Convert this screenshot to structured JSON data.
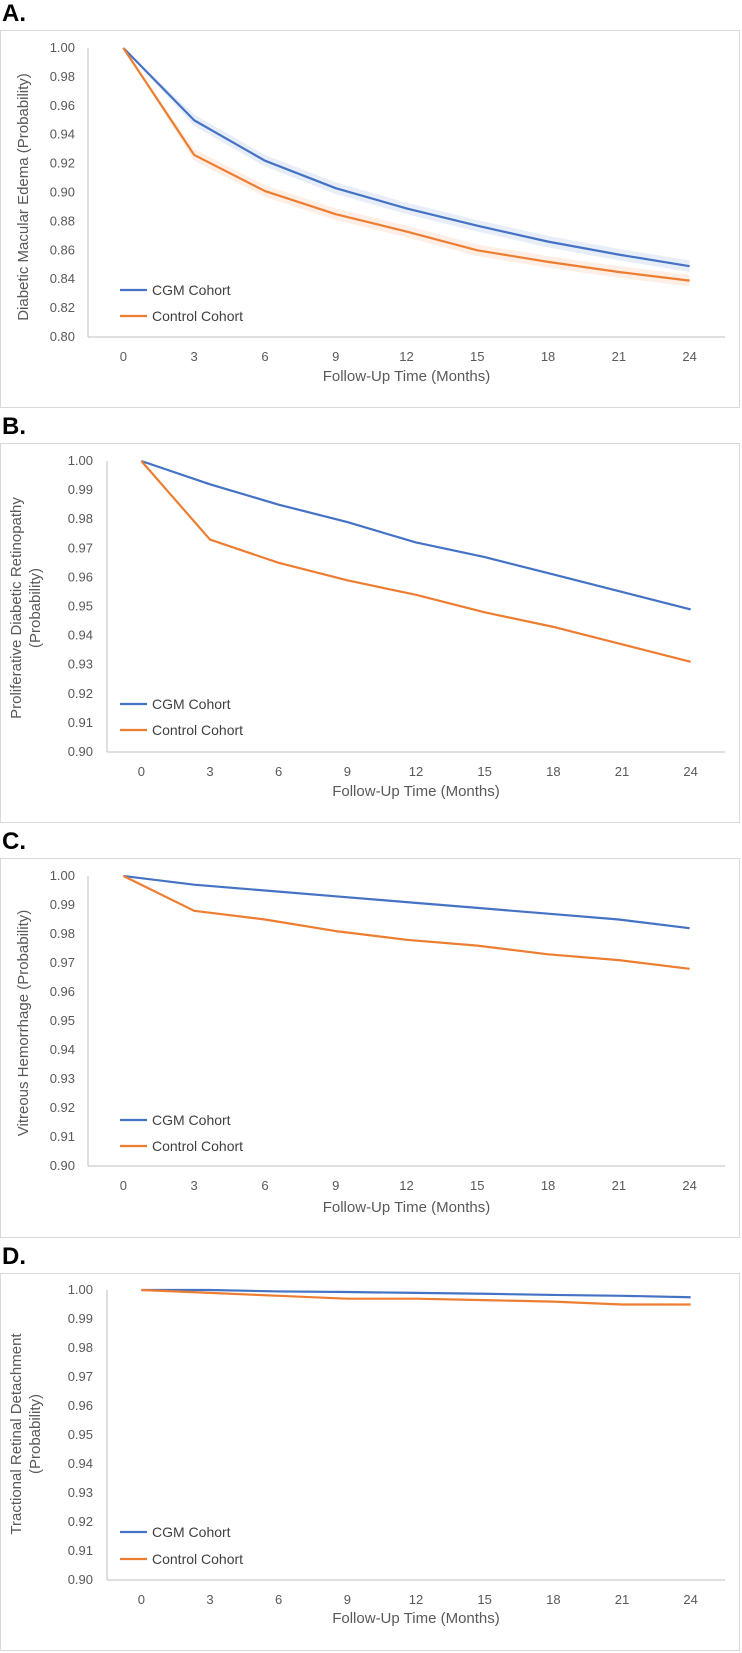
{
  "colors": {
    "cgm": "#4472c4",
    "control": "#ed7d31",
    "axis": "#bfbfbf",
    "text": "#595959"
  },
  "panels": [
    {
      "label": "A."
    },
    {
      "label": "B."
    },
    {
      "label": "C."
    },
    {
      "label": "D."
    }
  ],
  "chart_data": [
    {
      "type": "line",
      "ylabel": "Diabetic Macular Edema (Probability)",
      "xlabel": "Follow-Up Time (Months)",
      "categories": [
        "0",
        "3",
        "6",
        "9",
        "12",
        "15",
        "18",
        "21",
        "24"
      ],
      "yticks": [
        "0.80",
        "0.82",
        "0.84",
        "0.86",
        "0.88",
        "0.90",
        "0.92",
        "0.94",
        "0.96",
        "0.98",
        "1.00"
      ],
      "ylim": [
        0.8,
        1.0
      ],
      "confidence_band": true,
      "series": [
        {
          "name": "CGM Cohort",
          "values": [
            1.0,
            0.95,
            0.922,
            0.903,
            0.889,
            0.877,
            0.866,
            0.857,
            0.849
          ],
          "band": 0.004
        },
        {
          "name": "Control Cohort",
          "values": [
            1.0,
            0.926,
            0.901,
            0.885,
            0.873,
            0.86,
            0.852,
            0.845,
            0.839
          ],
          "band": 0.004
        }
      ]
    },
    {
      "type": "line",
      "ylabel": "Proliferative Diabetic Retinopathy (Probability)",
      "xlabel": "Follow-Up Time (Months)",
      "categories": [
        "0",
        "3",
        "6",
        "9",
        "12",
        "15",
        "18",
        "21",
        "24"
      ],
      "yticks": [
        "0.90",
        "0.91",
        "0.92",
        "0.93",
        "0.94",
        "0.95",
        "0.96",
        "0.97",
        "0.98",
        "0.99",
        "1.00"
      ],
      "ylim": [
        0.9,
        1.0
      ],
      "series": [
        {
          "name": "CGM Cohort",
          "values": [
            1.0,
            0.992,
            0.985,
            0.979,
            0.972,
            0.967,
            0.961,
            0.955,
            0.949
          ]
        },
        {
          "name": "Control Cohort",
          "values": [
            1.0,
            0.973,
            0.965,
            0.959,
            0.954,
            0.948,
            0.943,
            0.937,
            0.931
          ]
        }
      ]
    },
    {
      "type": "line",
      "ylabel": "Vitreous Hemorrhage (Probability)",
      "xlabel": "Follow-Up Time (Months)",
      "categories": [
        "0",
        "3",
        "6",
        "9",
        "12",
        "15",
        "18",
        "21",
        "24"
      ],
      "yticks": [
        "0.90",
        "0.91",
        "0.92",
        "0.93",
        "0.94",
        "0.95",
        "0.96",
        "0.97",
        "0.98",
        "0.99",
        "1.00"
      ],
      "ylim": [
        0.9,
        1.0
      ],
      "series": [
        {
          "name": "CGM Cohort",
          "values": [
            1.0,
            0.997,
            0.995,
            0.993,
            0.991,
            0.989,
            0.987,
            0.985,
            0.982
          ]
        },
        {
          "name": "Control Cohort",
          "values": [
            1.0,
            0.988,
            0.985,
            0.981,
            0.978,
            0.976,
            0.973,
            0.971,
            0.968
          ]
        }
      ]
    },
    {
      "type": "line",
      "ylabel": "Tractional Retinal Detachment (Probability)",
      "xlabel": "Follow-Up Time (Months)",
      "categories": [
        "0",
        "3",
        "6",
        "9",
        "12",
        "15",
        "18",
        "21",
        "24"
      ],
      "yticks": [
        "0.90",
        "0.91",
        "0.92",
        "0.93",
        "0.94",
        "0.95",
        "0.96",
        "0.97",
        "0.98",
        "0.99",
        "1.00"
      ],
      "ylim": [
        0.9,
        1.0
      ],
      "series": [
        {
          "name": "CGM Cohort",
          "values": [
            1.0,
            1.0,
            0.9995,
            0.9993,
            0.999,
            0.9987,
            0.9983,
            0.998,
            0.9975
          ]
        },
        {
          "name": "Control Cohort",
          "values": [
            1.0,
            0.999,
            0.998,
            0.997,
            0.997,
            0.9965,
            0.996,
            0.995,
            0.995
          ]
        }
      ]
    }
  ]
}
